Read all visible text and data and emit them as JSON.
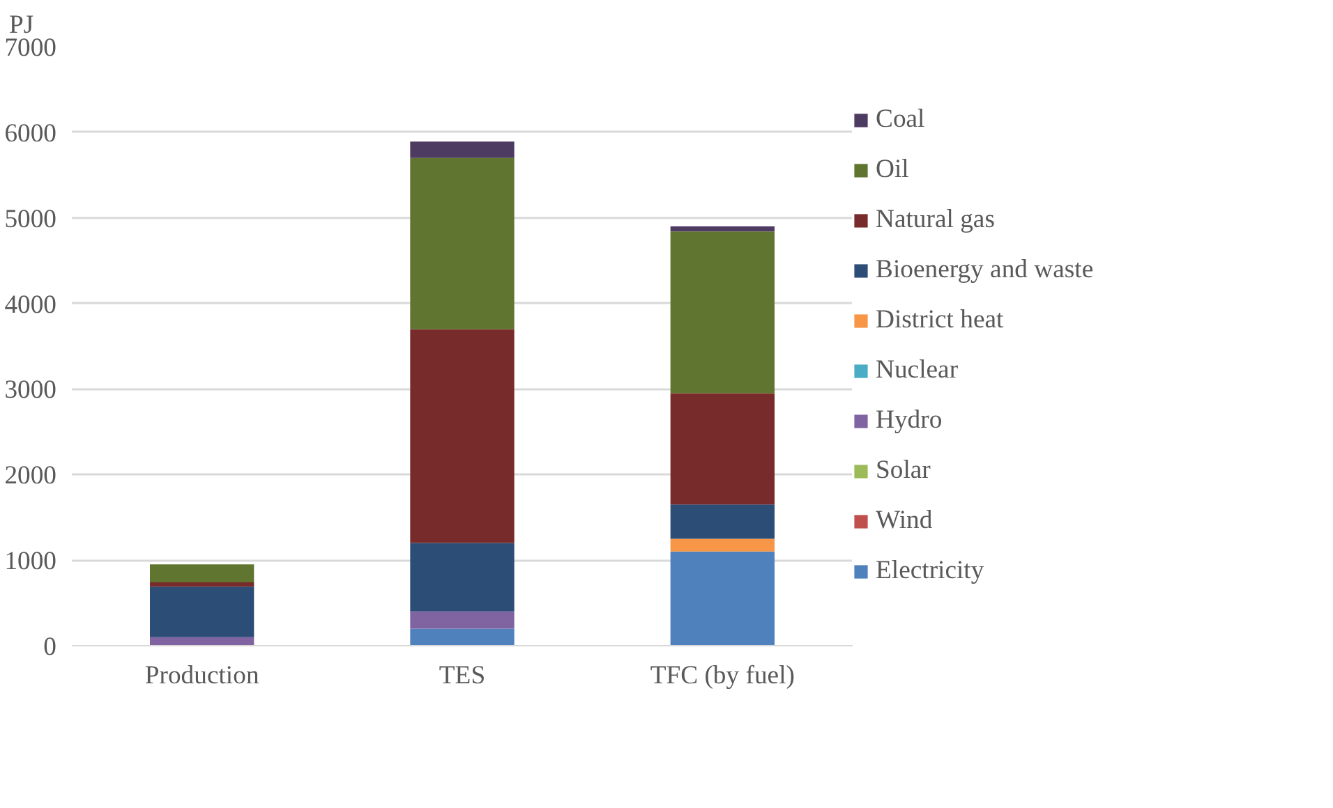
{
  "chart_data": {
    "type": "bar",
    "stacked": true,
    "ylabel": "PJ",
    "categories": [
      "Production",
      "TES",
      "TFC (by fuel)"
    ],
    "series": [
      {
        "name": "Electricity",
        "color": "#4f81bd",
        "values": [
          0,
          200,
          1100
        ]
      },
      {
        "name": "Wind",
        "color": "#c0504d",
        "values": [
          0,
          0,
          0
        ]
      },
      {
        "name": "Solar",
        "color": "#9bbb59",
        "values": [
          0,
          0,
          0
        ]
      },
      {
        "name": "Hydro",
        "color": "#8064a2",
        "values": [
          100,
          200,
          0
        ]
      },
      {
        "name": "Nuclear",
        "color": "#4bacc6",
        "values": [
          0,
          0,
          0
        ]
      },
      {
        "name": "District heat",
        "color": "#f79646",
        "values": [
          0,
          0,
          150
        ]
      },
      {
        "name": "Bioenergy and waste",
        "color": "#2c4d75",
        "values": [
          590,
          800,
          400
        ]
      },
      {
        "name": "Natural gas",
        "color": "#772b2b",
        "values": [
          50,
          2500,
          1300
        ]
      },
      {
        "name": "Oil",
        "color": "#60752f",
        "values": [
          210,
          2000,
          1890
        ]
      },
      {
        "name": "Coal",
        "color": "#4e3b62",
        "values": [
          0,
          190,
          60
        ]
      }
    ],
    "ylim": [
      0,
      7000
    ],
    "yticks": [
      0,
      1000,
      2000,
      3000,
      4000,
      5000,
      6000,
      7000
    ],
    "grid": "y",
    "legend": "right"
  }
}
